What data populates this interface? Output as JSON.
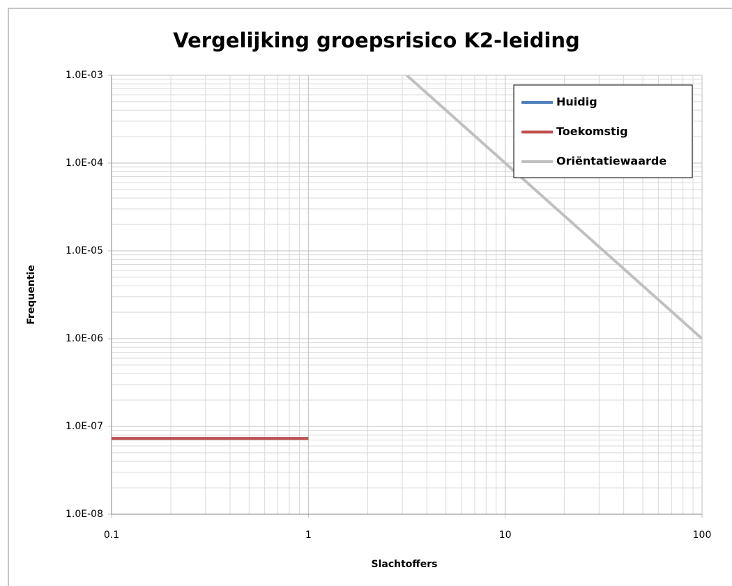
{
  "chart_data": {
    "type": "line",
    "title": "Vergelijking groepsrisico K2-leiding",
    "xlabel": "Slachtoffers",
    "ylabel": "Frequentie",
    "xscale": "log",
    "yscale": "log",
    "xlim": [
      0.1,
      100
    ],
    "ylim": [
      1e-08,
      0.001
    ],
    "xticks": [
      0.1,
      1,
      10,
      100
    ],
    "yticks": [
      {
        "value": 1e-08,
        "label": "1.0E-08"
      },
      {
        "value": 1e-07,
        "label": "1.0E-07"
      },
      {
        "value": 1e-06,
        "label": "1.0E-06"
      },
      {
        "value": 1e-05,
        "label": "1.0E-05"
      },
      {
        "value": 0.0001,
        "label": "1.0E-04"
      },
      {
        "value": 0.001,
        "label": "1.0E-03"
      }
    ],
    "grid": true,
    "minor_grid": true,
    "legend": "upper right",
    "series": [
      {
        "name": "Huidig",
        "color": "#4f81bd",
        "x": [
          0.1,
          1
        ],
        "values": [
          7.3e-08,
          7.3e-08
        ]
      },
      {
        "name": "Toekomstig",
        "color": "#c0504d",
        "x": [
          0.1,
          1
        ],
        "values": [
          7.3e-08,
          7.3e-08
        ]
      },
      {
        "name": "Oriëntatiewaarde",
        "color": "#c0c0c0",
        "x": [
          3.16,
          10,
          100
        ],
        "values": [
          0.001,
          0.0001,
          1e-06
        ]
      }
    ]
  }
}
